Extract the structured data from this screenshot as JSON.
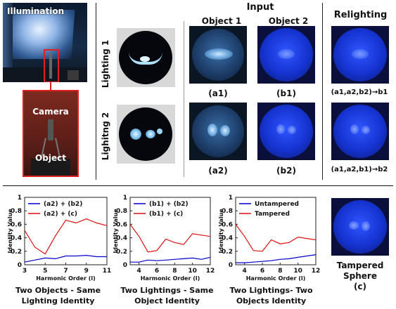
{
  "setup": {
    "illumination_label": "Illumination",
    "camera_label": "Camera",
    "object_label": "Object"
  },
  "headers": {
    "input": "Input",
    "object1": "Object 1",
    "object2": "Object 2",
    "relighting": "Relighting"
  },
  "rows": {
    "lighting1": "Lighting 1",
    "lighting2": "Lighitng 2"
  },
  "captions": {
    "a1": "(a1)",
    "b1": "(b1)",
    "a2": "(a2)",
    "b2": "(b2)",
    "relight1": "(a1,a2,b2)→b1",
    "relight2": "(a1,a2,b1)→b2"
  },
  "tampered": {
    "line1": "Tampered",
    "line2": "Sphere",
    "line3": "(c)"
  },
  "colors": {
    "blue_series": "#0000cc",
    "red_series": "#dd1111",
    "sphere_blue": "#1a3ae0"
  },
  "chart_data": [
    {
      "type": "line",
      "xlabel": "Harmonic Order (l)",
      "ylabel": "Identity Value",
      "xlim": [
        3,
        11
      ],
      "ylim": [
        0,
        1
      ],
      "xticks": [
        "3",
        "5",
        "7",
        "9",
        "11"
      ],
      "yticks": [
        "0",
        "0.2",
        "0.4",
        "0.6",
        "0.8",
        "1"
      ],
      "legend": "top",
      "x": [
        3,
        4,
        5,
        6,
        7,
        8,
        9,
        10,
        11
      ],
      "series": [
        {
          "name": "(a2) + (b2)",
          "color": "#0000cc",
          "values": [
            0.04,
            0.07,
            0.1,
            0.09,
            0.13,
            0.13,
            0.14,
            0.12,
            0.12
          ]
        },
        {
          "name": "(a2) + (c)",
          "color": "#dd1111",
          "values": [
            0.51,
            0.26,
            0.16,
            0.43,
            0.66,
            0.62,
            0.68,
            0.62,
            0.58
          ]
        }
      ],
      "caption1": "Two Objects - Same",
      "caption2": "Lighting  Identity"
    },
    {
      "type": "line",
      "xlabel": "Harmonic Order (l)",
      "ylabel": "Identity Value",
      "xlim": [
        3,
        12
      ],
      "ylim": [
        0,
        1
      ],
      "xticks": [
        "4",
        "6",
        "8",
        "10",
        "12"
      ],
      "yticks": [
        "0",
        "0.2",
        "0.4",
        "0.6",
        "0.8",
        "1"
      ],
      "legend": "top",
      "x": [
        3,
        4,
        5,
        6,
        7,
        8,
        9,
        10,
        11,
        12
      ],
      "series": [
        {
          "name": "(b1) + (b2)",
          "color": "#0000cc",
          "values": [
            0.04,
            0.04,
            0.07,
            0.06,
            0.07,
            0.08,
            0.09,
            0.1,
            0.08,
            0.11
          ]
        },
        {
          "name": "(b1) + (c)",
          "color": "#dd1111",
          "values": [
            0.6,
            0.42,
            0.19,
            0.21,
            0.38,
            0.33,
            0.3,
            0.46,
            0.44,
            0.42
          ]
        }
      ],
      "caption1": "Two Lightings - Same",
      "caption2": "Object Identity"
    },
    {
      "type": "line",
      "xlabel": "Harmonic Order (l)",
      "ylabel": "Identity Value",
      "xlim": [
        3,
        12
      ],
      "ylim": [
        0,
        1
      ],
      "xticks": [
        "4",
        "6",
        "8",
        "10",
        "12"
      ],
      "yticks": [
        "0",
        "0.2",
        "0.4",
        "0.6",
        "0.8",
        "1"
      ],
      "legend": "top",
      "x": [
        3,
        4,
        5,
        6,
        7,
        8,
        9,
        10,
        11,
        12
      ],
      "series": [
        {
          "name": "Untampered",
          "color": "#0000cc",
          "values": [
            0.03,
            0.03,
            0.04,
            0.05,
            0.06,
            0.08,
            0.09,
            0.11,
            0.13,
            0.15
          ]
        },
        {
          "name": "Tampered",
          "color": "#dd1111",
          "values": [
            0.6,
            0.42,
            0.21,
            0.2,
            0.37,
            0.31,
            0.33,
            0.41,
            0.39,
            0.37
          ]
        }
      ],
      "caption1": "Two Lightings- Two",
      "caption2": "Objects Identity"
    }
  ]
}
